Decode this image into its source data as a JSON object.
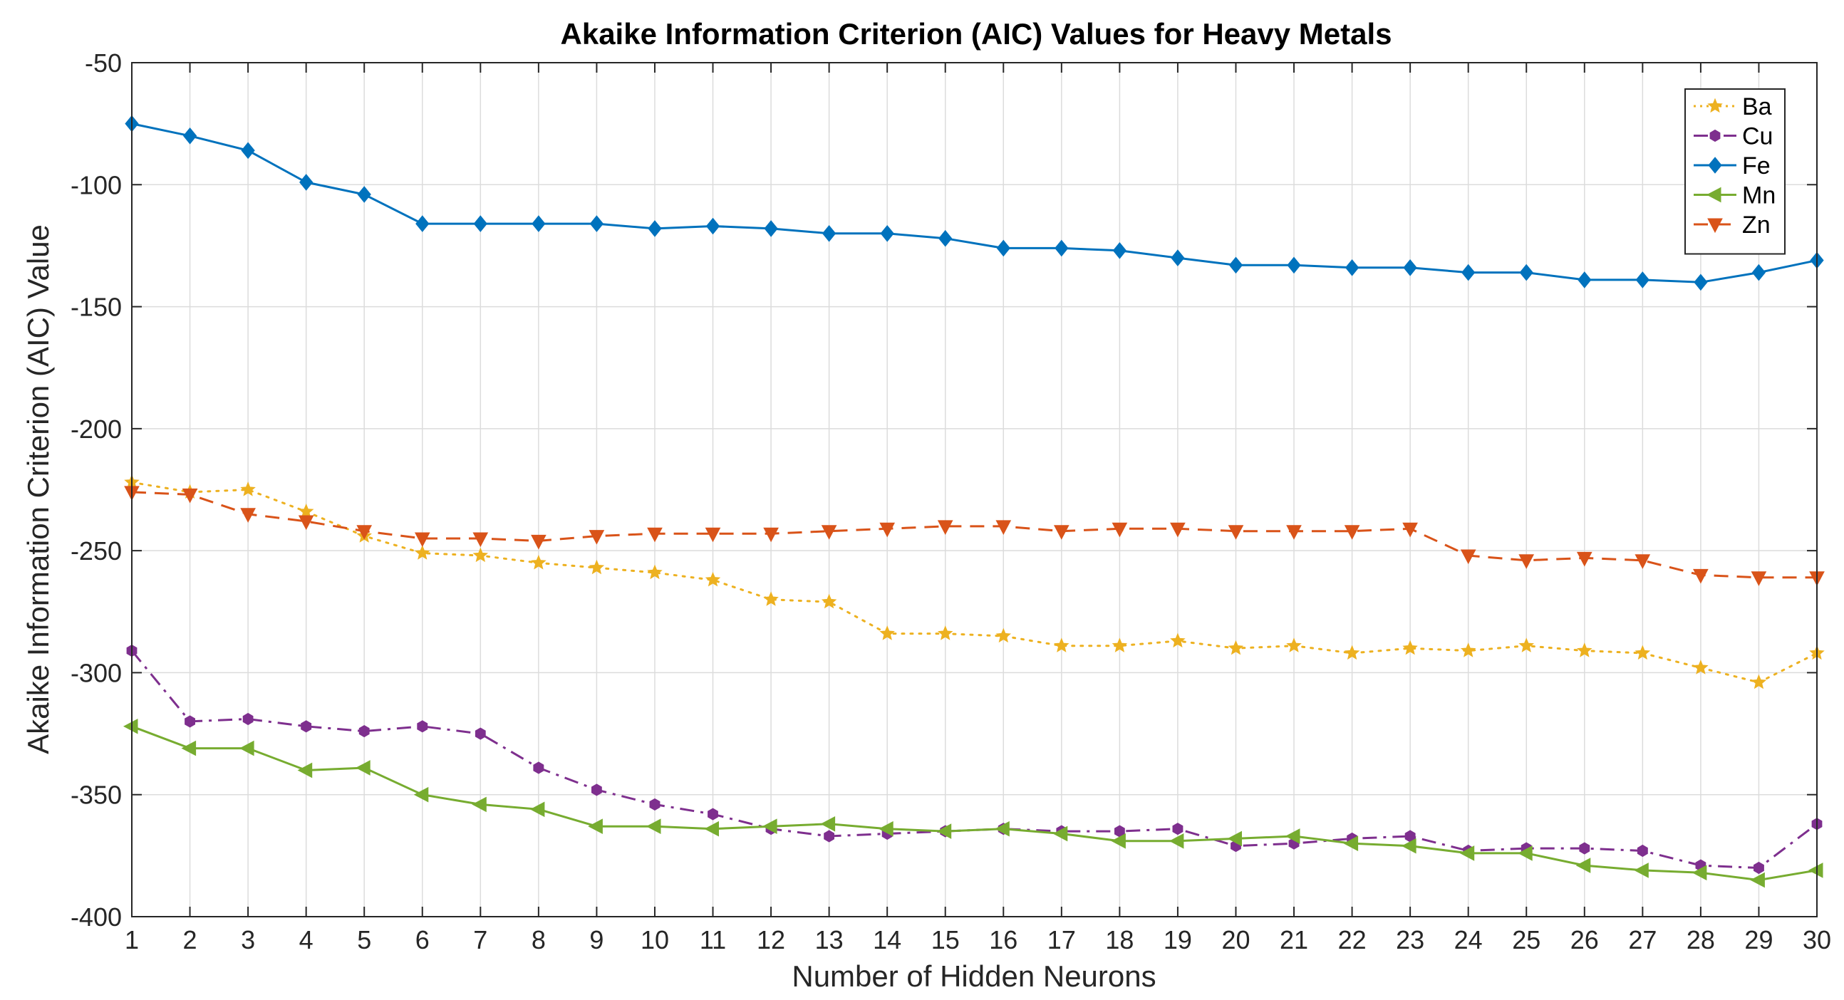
{
  "chart_data": {
    "type": "line",
    "title": "Akaike Information Criterion (AIC) Values for Heavy Metals",
    "xlabel": "Number of Hidden Neurons",
    "ylabel": "Akaike Information Criterion (AIC) Value",
    "xlim": [
      1,
      30
    ],
    "ylim": [
      -400,
      -50
    ],
    "x": [
      1,
      2,
      3,
      4,
      5,
      6,
      7,
      8,
      9,
      10,
      11,
      12,
      13,
      14,
      15,
      16,
      17,
      18,
      19,
      20,
      21,
      22,
      23,
      24,
      25,
      26,
      27,
      28,
      29,
      30
    ],
    "xticks": [
      "1",
      "2",
      "3",
      "4",
      "5",
      "6",
      "7",
      "8",
      "9",
      "10",
      "11",
      "12",
      "13",
      "14",
      "15",
      "16",
      "17",
      "18",
      "19",
      "20",
      "21",
      "22",
      "23",
      "24",
      "25",
      "26",
      "27",
      "28",
      "29",
      "30"
    ],
    "yticks": [
      "-50",
      "-100",
      "-150",
      "-200",
      "-250",
      "-300",
      "-350",
      "-400"
    ],
    "grid": true,
    "legend_position": "top-right",
    "series": [
      {
        "name": "Ba",
        "color": "#EDB120",
        "dash": "dotted",
        "marker": "star",
        "values": [
          -222,
          -226,
          -225,
          -234,
          -244,
          -251,
          -252,
          -255,
          -257,
          -259,
          -262,
          -270,
          -271,
          -284,
          -284,
          -285,
          -289,
          -289,
          -287,
          -290,
          -289,
          -292,
          -290,
          -291,
          -289,
          -291,
          -292,
          -298,
          -304,
          -292
        ]
      },
      {
        "name": "Cu",
        "color": "#7E2F8E",
        "dash": "dashdot",
        "marker": "hexagon",
        "values": [
          -291,
          -320,
          -319,
          -322,
          -324,
          -322,
          -325,
          -339,
          -348,
          -354,
          -358,
          -364,
          -367,
          -366,
          -365,
          -364,
          -365,
          -365,
          -364,
          -371,
          -370,
          -368,
          -367,
          -373,
          -372,
          -372,
          -373,
          -379,
          -380,
          -362
        ]
      },
      {
        "name": "Fe",
        "color": "#0072BD",
        "dash": "solid",
        "marker": "diamond",
        "values": [
          -75,
          -80,
          -86,
          -99,
          -104,
          -116,
          -116,
          -116,
          -116,
          -118,
          -117,
          -118,
          -120,
          -120,
          -122,
          -126,
          -126,
          -127,
          -130,
          -133,
          -133,
          -134,
          -134,
          -136,
          -136,
          -139,
          -139,
          -140,
          -136,
          -131
        ]
      },
      {
        "name": "Mn",
        "color": "#77AC30",
        "dash": "solid",
        "marker": "triangle-left",
        "values": [
          -322,
          -331,
          -331,
          -340,
          -339,
          -350,
          -354,
          -356,
          -363,
          -363,
          -364,
          -363,
          -362,
          -364,
          -365,
          -364,
          -366,
          -369,
          -369,
          -368,
          -367,
          -370,
          -371,
          -374,
          -374,
          -379,
          -381,
          -382,
          -385,
          -381
        ]
      },
      {
        "name": "Zn",
        "color": "#D95319",
        "dash": "dashed",
        "marker": "triangle-down",
        "values": [
          -226,
          -227,
          -235,
          -238,
          -242,
          -245,
          -245,
          -246,
          -244,
          -243,
          -243,
          -243,
          -242,
          -241,
          -240,
          -240,
          -242,
          -241,
          -241,
          -242,
          -242,
          -242,
          -241,
          -252,
          -254,
          -253,
          -254,
          -260,
          -261,
          -261
        ]
      }
    ]
  }
}
